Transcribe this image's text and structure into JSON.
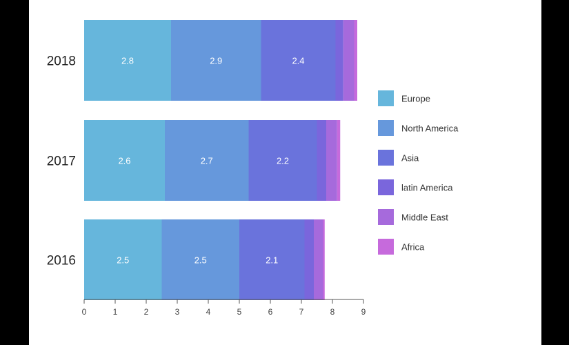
{
  "chart_data": {
    "type": "bar",
    "orientation": "horizontal",
    "stacked": true,
    "categories": [
      "2018",
      "2017",
      "2016"
    ],
    "series": [
      {
        "name": "Europe",
        "color": "#66b6dc",
        "values": [
          2.8,
          2.6,
          2.5
        ]
      },
      {
        "name": "North America",
        "color": "#6698dc",
        "values": [
          2.9,
          2.7,
          2.5
        ]
      },
      {
        "name": "Asia",
        "color": "#6a73dc",
        "values": [
          2.4,
          2.2,
          2.1
        ]
      },
      {
        "name": "latin America",
        "color": "#7a66dc",
        "values": [
          0.25,
          0.3,
          0.3
        ]
      },
      {
        "name": "Middle East",
        "color": "#a66adc",
        "values": [
          0.35,
          0.35,
          0.3
        ]
      },
      {
        "name": "Africa",
        "color": "#c66adc",
        "values": [
          0.1,
          0.1,
          0.05
        ]
      }
    ],
    "data_labels": [
      [
        "2.8",
        "2.9",
        "2.4",
        "",
        "",
        ""
      ],
      [
        "2.6",
        "2.7",
        "2.2",
        "",
        "",
        ""
      ],
      [
        "2.5",
        "2.5",
        "2.1",
        "",
        "",
        ""
      ]
    ],
    "xlim": [
      0,
      9
    ],
    "x_ticks": [
      "0",
      "1",
      "2",
      "3",
      "4",
      "5",
      "6",
      "7",
      "8",
      "9"
    ],
    "title": "",
    "xlabel": "",
    "ylabel": "",
    "grid": false,
    "legend_position": "right"
  }
}
